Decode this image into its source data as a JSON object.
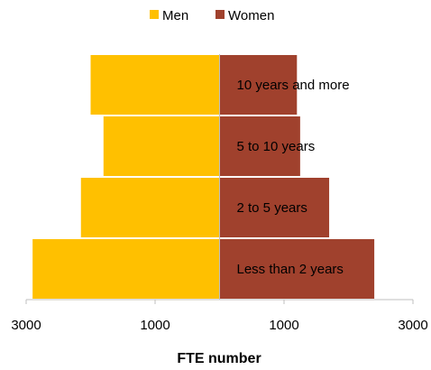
{
  "chart_data": {
    "type": "bar",
    "orientation": "horizontal",
    "layout": "population-pyramid",
    "categories": [
      "10 years and more",
      "5 to 10 years",
      "2 to 5 years",
      "Less than 2 years"
    ],
    "series": [
      {
        "name": "Men",
        "values": [
          2000,
          1800,
          2150,
          2900
        ],
        "color": "#FFC000"
      },
      {
        "name": "Women",
        "values": [
          1200,
          1250,
          1700,
          2400
        ],
        "color": "#A0412D"
      }
    ],
    "xlabel": "FTE number",
    "xlim": [
      -3000,
      3000
    ],
    "xticks": [
      -3000,
      -1000,
      1000,
      3000
    ],
    "xtick_labels": [
      "3000",
      "1000",
      "1000",
      "3000"
    ],
    "legend_position": "top-center",
    "grid": false
  }
}
